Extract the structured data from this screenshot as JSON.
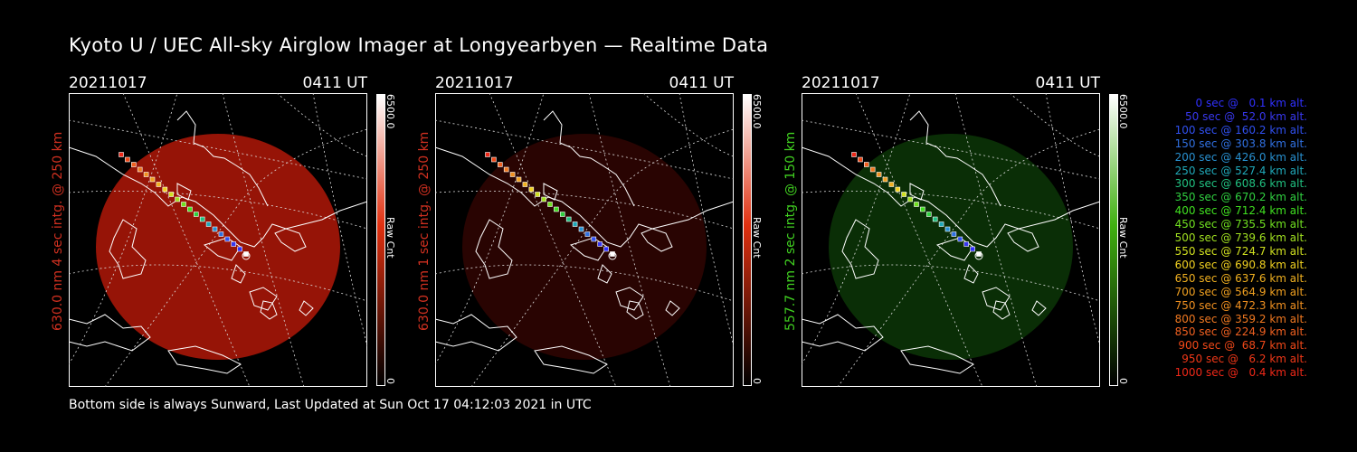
{
  "title": "Kyoto U / UEC All-sky Airglow Imager at Longyearbyen — Realtime Data",
  "footer": "Bottom side is always Sunward, Last Updated at Sun Oct 17 04:12:03 2021 in UTC",
  "panels": [
    {
      "date": "20211017",
      "time": "0411 UT",
      "ylabel": "630.0 nm 4 sec intg. @ 250 km",
      "ylabel_color": "#d03020",
      "glow_color": "#b01808",
      "glow_opacity": 0.85,
      "cbar_max": "6500.0",
      "cbar_min": "0",
      "cbar_unit": "Raw Cnt",
      "cbar_color": "#e03010"
    },
    {
      "date": "20211017",
      "time": "0411 UT",
      "ylabel": "630.0 nm 1 sec intg. @ 250 km",
      "ylabel_color": "#d03020",
      "glow_color": "#4a0804",
      "glow_opacity": 0.55,
      "cbar_max": "6500.0",
      "cbar_min": "0",
      "cbar_unit": "Raw Cnt",
      "cbar_color": "#e03010"
    },
    {
      "date": "20211017",
      "time": "0411 UT",
      "ylabel": "557.7 nm 2 sec intg. @ 150 km",
      "ylabel_color": "#40d020",
      "glow_color": "#0c3a08",
      "glow_opacity": 0.8,
      "cbar_max": "6500.0",
      "cbar_min": "0",
      "cbar_unit": "Raw Cnt",
      "cbar_color": "#40b010"
    }
  ],
  "legend": [
    {
      "text": "0 sec @   0.1 km alt.",
      "color": "#3030ff"
    },
    {
      "text": "50 sec @  52.0 km alt.",
      "color": "#3838f0"
    },
    {
      "text": "100 sec @ 160.2 km alt.",
      "color": "#3050f0"
    },
    {
      "text": "150 sec @ 303.8 km alt.",
      "color": "#3070e0"
    },
    {
      "text": "200 sec @ 426.0 km alt.",
      "color": "#2890d0"
    },
    {
      "text": "250 sec @ 527.4 km alt.",
      "color": "#20a8b8"
    },
    {
      "text": "300 sec @ 608.6 km alt.",
      "color": "#20c080"
    },
    {
      "text": "350 sec @ 670.2 km alt.",
      "color": "#30d040"
    },
    {
      "text": "400 sec @ 712.4 km alt.",
      "color": "#40e020"
    },
    {
      "text": "450 sec @ 735.5 km alt.",
      "color": "#70e020"
    },
    {
      "text": "500 sec @ 739.6 km alt.",
      "color": "#a0e020"
    },
    {
      "text": "550 sec @ 724.7 km alt.",
      "color": "#d0e020"
    },
    {
      "text": "600 sec @ 690.8 km alt.",
      "color": "#f0d020"
    },
    {
      "text": "650 sec @ 637.6 km alt.",
      "color": "#f0b020"
    },
    {
      "text": "700 sec @ 564.9 km alt.",
      "color": "#f0a020"
    },
    {
      "text": "750 sec @ 472.3 km alt.",
      "color": "#f09020"
    },
    {
      "text": "800 sec @ 359.2 km alt.",
      "color": "#f07820"
    },
    {
      "text": "850 sec @ 224.9 km alt.",
      "color": "#f06020"
    },
    {
      "text": "900 sec @  68.7 km alt.",
      "color": "#f04818"
    },
    {
      "text": "950 sec @   6.2 km alt.",
      "color": "#f03818"
    },
    {
      "text": "1000 sec @   0.4 km alt.",
      "color": "#f02818"
    }
  ],
  "track_colors": [
    "#f02818",
    "#f04818",
    "#f06020",
    "#f07820",
    "#f09020",
    "#f0a020",
    "#f0b020",
    "#f0d020",
    "#d0e020",
    "#a0e020",
    "#70e020",
    "#40e020",
    "#30d040",
    "#20c080",
    "#20a8b8",
    "#2890d0",
    "#3070e0",
    "#3050f0",
    "#3838f0",
    "#3030ff",
    "#ffffff"
  ]
}
